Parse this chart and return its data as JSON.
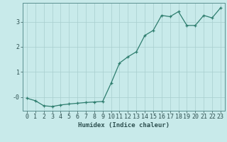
{
  "x": [
    0,
    1,
    2,
    3,
    4,
    5,
    6,
    7,
    8,
    9,
    10,
    11,
    12,
    13,
    14,
    15,
    16,
    17,
    18,
    19,
    20,
    21,
    22,
    23
  ],
  "y": [
    -0.05,
    -0.15,
    -0.35,
    -0.38,
    -0.32,
    -0.28,
    -0.25,
    -0.22,
    -0.2,
    -0.18,
    0.55,
    1.35,
    1.6,
    1.8,
    2.45,
    2.65,
    3.25,
    3.2,
    3.4,
    2.85,
    2.85,
    3.25,
    3.15,
    3.55
  ],
  "xlabel": "Humidex (Indice chaleur)",
  "line_color": "#2e7d6e",
  "marker": "+",
  "background_color": "#c8eaea",
  "grid_color": "#a8cece",
  "tick_label_color": "#2e5050",
  "axis_color": "#5a9090",
  "ylim": [
    -0.55,
    3.75
  ],
  "xlim": [
    -0.5,
    23.5
  ],
  "ytick_labels": [
    "-0",
    "1",
    "2",
    "3"
  ],
  "ytick_vals": [
    0,
    1,
    2,
    3
  ],
  "xtick_labels": [
    "0",
    "1",
    "2",
    "3",
    "4",
    "5",
    "6",
    "7",
    "8",
    "9",
    "10",
    "11",
    "12",
    "13",
    "14",
    "15",
    "16",
    "17",
    "18",
    "19",
    "20",
    "21",
    "22",
    "23"
  ],
  "xlabel_fontsize": 6.5,
  "tick_fontsize": 6.0
}
